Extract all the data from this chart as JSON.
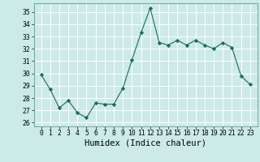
{
  "x": [
    0,
    1,
    2,
    3,
    4,
    5,
    6,
    7,
    8,
    9,
    10,
    11,
    12,
    13,
    14,
    15,
    16,
    17,
    18,
    19,
    20,
    21,
    22,
    23
  ],
  "y": [
    29.9,
    28.7,
    27.2,
    27.8,
    26.8,
    26.4,
    27.6,
    27.5,
    27.5,
    28.8,
    31.1,
    33.3,
    35.3,
    32.5,
    32.3,
    32.7,
    32.3,
    32.7,
    32.3,
    32.0,
    32.5,
    32.1,
    29.8,
    29.1
  ],
  "line_color": "#1a6b5a",
  "marker": "D",
  "marker_size": 2.2,
  "bg_color": "#cceae7",
  "grid_color": "#b0d8d4",
  "xlabel": "Humidex (Indice chaleur)",
  "ylim": [
    25.7,
    35.7
  ],
  "yticks": [
    26,
    27,
    28,
    29,
    30,
    31,
    32,
    33,
    34,
    35
  ],
  "xticks": [
    0,
    1,
    2,
    3,
    4,
    5,
    6,
    7,
    8,
    9,
    10,
    11,
    12,
    13,
    14,
    15,
    16,
    17,
    18,
    19,
    20,
    21,
    22,
    23
  ],
  "tick_labelsize": 5.8,
  "xlabel_fontsize": 7.5
}
